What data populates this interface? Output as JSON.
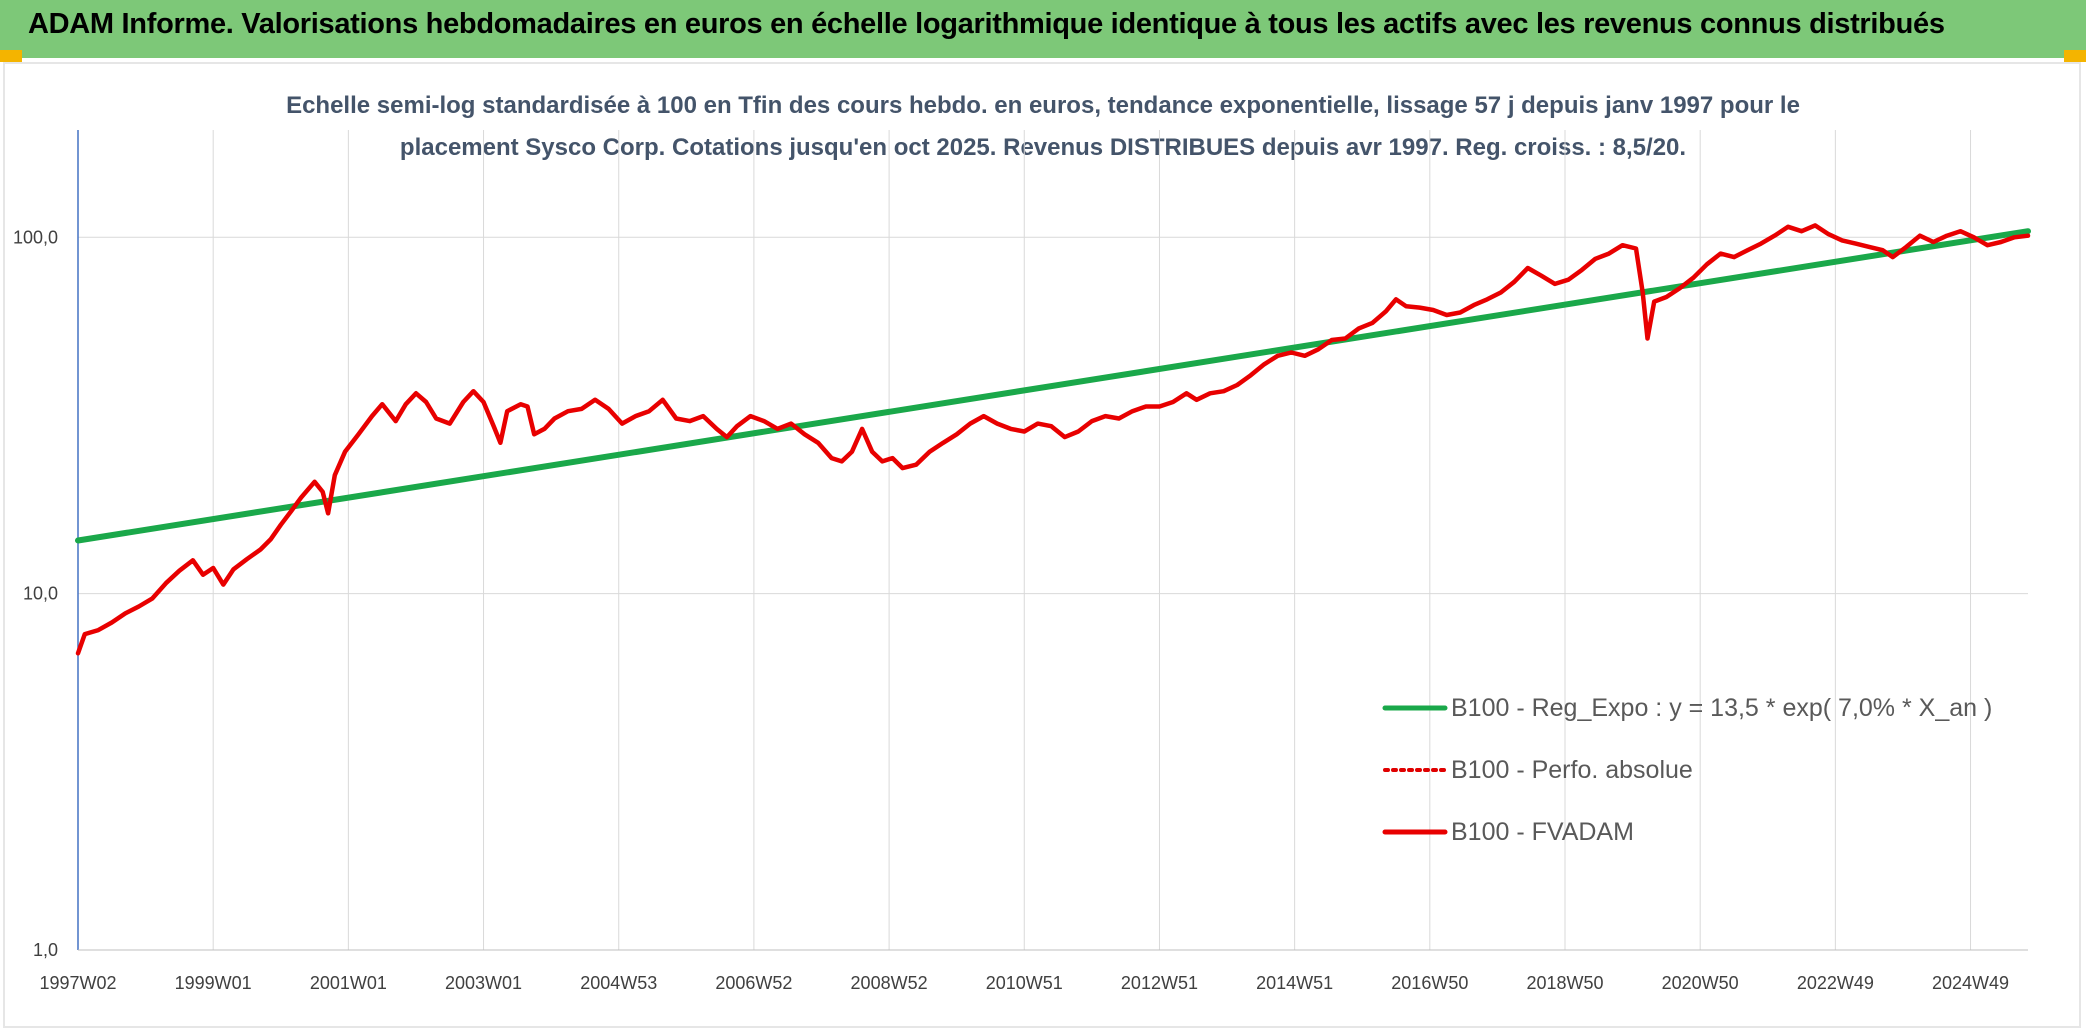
{
  "header": {
    "title": "ADAM Informe. Valorisations hebdomadaires en euros en échelle logarithmique identique à tous les actifs avec les revenus connus distribués"
  },
  "chart_data": {
    "type": "line",
    "title_line1": "Echelle semi-log standardisée à 100 en Tfin des cours hebdo. en euros, tendance exponentielle, lissage 57 j depuis janv 1997 pour le",
    "title_line2": "placement Sysco Corp. Cotations jusqu'en oct 2025. Revenus DISTRIBUES depuis avr 1997. Reg. croiss. : 8,5/20.",
    "y_scale": "log",
    "ylim": [
      1,
      200
    ],
    "y_ticks": [
      {
        "value": 1,
        "label": "1,0"
      },
      {
        "value": 10,
        "label": "10,0"
      },
      {
        "value": 100,
        "label": "100,0"
      }
    ],
    "xlim": [
      1997.0,
      2025.85
    ],
    "x_ticks": [
      {
        "value": 1997.0,
        "label": "1997W02"
      },
      {
        "value": 1999.0,
        "label": "1999W01"
      },
      {
        "value": 2001.0,
        "label": "2001W01"
      },
      {
        "value": 2003.0,
        "label": "2003W01"
      },
      {
        "value": 2005.0,
        "label": "2004W53"
      },
      {
        "value": 2007.0,
        "label": "2006W52"
      },
      {
        "value": 2009.0,
        "label": "2008W52"
      },
      {
        "value": 2011.0,
        "label": "2010W51"
      },
      {
        "value": 2013.0,
        "label": "2012W51"
      },
      {
        "value": 2015.0,
        "label": "2014W51"
      },
      {
        "value": 2017.0,
        "label": "2016W50"
      },
      {
        "value": 2019.0,
        "label": "2018W50"
      },
      {
        "value": 2021.0,
        "label": "2020W50"
      },
      {
        "value": 2023.0,
        "label": "2022W49"
      },
      {
        "value": 2025.0,
        "label": "2024W49"
      }
    ],
    "grid": "vertical and horizontal",
    "legend_position": "bottom-right",
    "series": [
      {
        "name": "B100 - Reg_Expo : y = 13,5 * exp( 7,0% *  X_an )",
        "color": "#1aa84a",
        "style": "solid",
        "points": [
          [
            1997.0,
            14.1
          ],
          [
            2025.85,
            104
          ]
        ]
      },
      {
        "name": "B100 - Perfo. absolue",
        "color": "#e00000",
        "style": "dotted",
        "points": []
      },
      {
        "name": "B100 - FVADAM",
        "color": "#e80000",
        "style": "solid",
        "points": [
          [
            1997.0,
            6.8
          ],
          [
            1997.1,
            7.7
          ],
          [
            1997.3,
            7.9
          ],
          [
            1997.5,
            8.3
          ],
          [
            1997.7,
            8.8
          ],
          [
            1997.9,
            9.2
          ],
          [
            1998.1,
            9.7
          ],
          [
            1998.3,
            10.7
          ],
          [
            1998.5,
            11.6
          ],
          [
            1998.7,
            12.4
          ],
          [
            1998.85,
            11.3
          ],
          [
            1999.0,
            11.8
          ],
          [
            1999.15,
            10.6
          ],
          [
            1999.3,
            11.7
          ],
          [
            1999.5,
            12.5
          ],
          [
            1999.7,
            13.3
          ],
          [
            1999.85,
            14.2
          ],
          [
            2000.0,
            15.6
          ],
          [
            2000.15,
            17.0
          ],
          [
            2000.3,
            18.6
          ],
          [
            2000.5,
            20.6
          ],
          [
            2000.62,
            19.3
          ],
          [
            2000.7,
            16.8
          ],
          [
            2000.8,
            21.5
          ],
          [
            2000.95,
            25.0
          ],
          [
            2001.15,
            28.0
          ],
          [
            2001.35,
            31.5
          ],
          [
            2001.5,
            34.0
          ],
          [
            2001.7,
            30.5
          ],
          [
            2001.85,
            34.0
          ],
          [
            2002.0,
            36.5
          ],
          [
            2002.15,
            34.5
          ],
          [
            2002.3,
            31.0
          ],
          [
            2002.5,
            30.0
          ],
          [
            2002.7,
            34.5
          ],
          [
            2002.85,
            37.0
          ],
          [
            2003.0,
            34.5
          ],
          [
            2003.15,
            29.5
          ],
          [
            2003.25,
            26.5
          ],
          [
            2003.35,
            32.5
          ],
          [
            2003.55,
            34.0
          ],
          [
            2003.65,
            33.5
          ],
          [
            2003.75,
            28.0
          ],
          [
            2003.9,
            29.0
          ],
          [
            2004.05,
            31.0
          ],
          [
            2004.25,
            32.5
          ],
          [
            2004.45,
            33.0
          ],
          [
            2004.65,
            35.0
          ],
          [
            2004.85,
            33.0
          ],
          [
            2005.05,
            30.0
          ],
          [
            2005.25,
            31.5
          ],
          [
            2005.45,
            32.5
          ],
          [
            2005.65,
            35.0
          ],
          [
            2005.85,
            31.0
          ],
          [
            2006.05,
            30.5
          ],
          [
            2006.25,
            31.5
          ],
          [
            2006.45,
            29.0
          ],
          [
            2006.6,
            27.5
          ],
          [
            2006.75,
            29.5
          ],
          [
            2006.95,
            31.5
          ],
          [
            2007.15,
            30.5
          ],
          [
            2007.35,
            29.0
          ],
          [
            2007.55,
            30.0
          ],
          [
            2007.75,
            28.0
          ],
          [
            2007.95,
            26.5
          ],
          [
            2008.15,
            24.0
          ],
          [
            2008.3,
            23.5
          ],
          [
            2008.45,
            25.0
          ],
          [
            2008.6,
            29.0
          ],
          [
            2008.75,
            25.0
          ],
          [
            2008.9,
            23.5
          ],
          [
            2009.05,
            24.0
          ],
          [
            2009.2,
            22.5
          ],
          [
            2009.4,
            23.0
          ],
          [
            2009.6,
            25.0
          ],
          [
            2009.8,
            26.5
          ],
          [
            2010.0,
            28.0
          ],
          [
            2010.2,
            30.0
          ],
          [
            2010.4,
            31.5
          ],
          [
            2010.6,
            30.0
          ],
          [
            2010.8,
            29.0
          ],
          [
            2011.0,
            28.5
          ],
          [
            2011.2,
            30.0
          ],
          [
            2011.4,
            29.5
          ],
          [
            2011.6,
            27.5
          ],
          [
            2011.8,
            28.5
          ],
          [
            2012.0,
            30.5
          ],
          [
            2012.2,
            31.5
          ],
          [
            2012.4,
            31.0
          ],
          [
            2012.6,
            32.5
          ],
          [
            2012.8,
            33.5
          ],
          [
            2013.0,
            33.5
          ],
          [
            2013.2,
            34.5
          ],
          [
            2013.4,
            36.5
          ],
          [
            2013.55,
            35.0
          ],
          [
            2013.75,
            36.5
          ],
          [
            2013.95,
            37.0
          ],
          [
            2014.15,
            38.5
          ],
          [
            2014.35,
            41.0
          ],
          [
            2014.55,
            44.0
          ],
          [
            2014.75,
            46.5
          ],
          [
            2014.95,
            47.5
          ],
          [
            2015.15,
            46.5
          ],
          [
            2015.35,
            48.5
          ],
          [
            2015.55,
            51.5
          ],
          [
            2015.75,
            52.0
          ],
          [
            2015.95,
            55.5
          ],
          [
            2016.15,
            57.5
          ],
          [
            2016.35,
            62.0
          ],
          [
            2016.5,
            67.0
          ],
          [
            2016.65,
            64.0
          ],
          [
            2016.85,
            63.5
          ],
          [
            2017.05,
            62.5
          ],
          [
            2017.25,
            60.5
          ],
          [
            2017.45,
            61.5
          ],
          [
            2017.65,
            64.5
          ],
          [
            2017.85,
            67.0
          ],
          [
            2018.05,
            70.0
          ],
          [
            2018.25,
            75.0
          ],
          [
            2018.45,
            82.0
          ],
          [
            2018.65,
            78.0
          ],
          [
            2018.85,
            74.0
          ],
          [
            2019.05,
            76.0
          ],
          [
            2019.25,
            81.0
          ],
          [
            2019.45,
            87.0
          ],
          [
            2019.65,
            90.0
          ],
          [
            2019.85,
            95.0
          ],
          [
            2020.05,
            93.0
          ],
          [
            2020.15,
            70.0
          ],
          [
            2020.22,
            52.0
          ],
          [
            2020.32,
            66.0
          ],
          [
            2020.5,
            68.0
          ],
          [
            2020.7,
            72.0
          ],
          [
            2020.9,
            77.0
          ],
          [
            2021.1,
            84.0
          ],
          [
            2021.3,
            90.0
          ],
          [
            2021.5,
            88.0
          ],
          [
            2021.7,
            92.0
          ],
          [
            2021.9,
            96.0
          ],
          [
            2022.1,
            101.0
          ],
          [
            2022.3,
            107.0
          ],
          [
            2022.5,
            104.0
          ],
          [
            2022.7,
            108.0
          ],
          [
            2022.9,
            102.0
          ],
          [
            2023.1,
            98.0
          ],
          [
            2023.3,
            96.0
          ],
          [
            2023.5,
            94.0
          ],
          [
            2023.7,
            92.0
          ],
          [
            2023.85,
            88.0
          ],
          [
            2024.05,
            94.0
          ],
          [
            2024.25,
            101.0
          ],
          [
            2024.45,
            97.0
          ],
          [
            2024.65,
            101.0
          ],
          [
            2024.85,
            104.0
          ],
          [
            2025.05,
            100.0
          ],
          [
            2025.25,
            95.0
          ],
          [
            2025.45,
            97.0
          ],
          [
            2025.65,
            100.0
          ],
          [
            2025.85,
            101.0
          ]
        ]
      }
    ]
  }
}
